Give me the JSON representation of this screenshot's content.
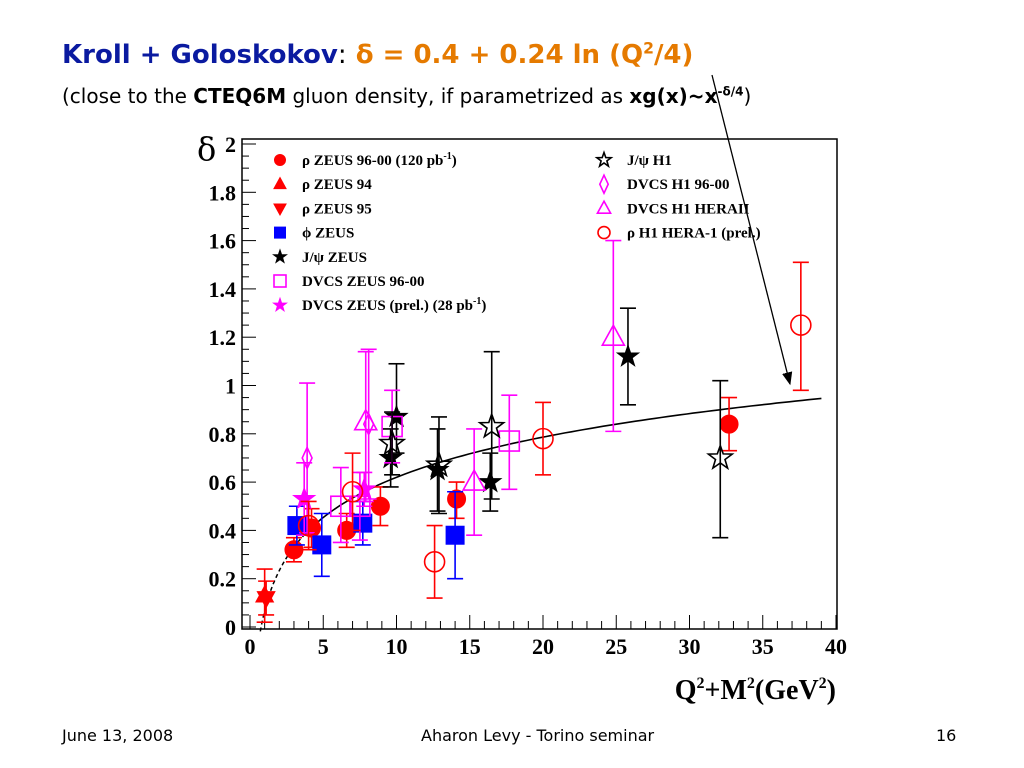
{
  "slide": {
    "title": {
      "authors": "Kroll + Goloskokov",
      "colon": ":",
      "delta": "δ",
      "equation_main": "= 0.4 + 0.24 ln (Q",
      "equation_sup": "2",
      "equation_end": "/4)"
    },
    "subtitle": {
      "part1": "(close to the",
      "cteq": "CTEQ6M",
      "part2": "gluon density, if parametrized as",
      "formula": "xg(x)~x",
      "formula_sup": "-δ/4",
      "close": ")"
    },
    "footer": {
      "date": "June 13, 2008",
      "center": "Aharon Levy - Torino seminar",
      "page": "16"
    }
  },
  "colors": {
    "title_blue": "#0a1aa0",
    "title_orange": "#e57a00",
    "red": "#ff0000",
    "blue": "#0000ff",
    "magenta": "#ff00ff",
    "black": "#000000"
  },
  "chart_data": {
    "type": "scatter",
    "xlabel": "Q2+M2(GeV2)",
    "xlabel_parts": [
      "Q",
      "2",
      "+M",
      "2",
      "(GeV",
      "2",
      ")"
    ],
    "ylabel": "δ",
    "xlim": [
      0,
      40
    ],
    "ylim": [
      0,
      2
    ],
    "xticks": [
      "0",
      "5",
      "10",
      "15",
      "20",
      "25",
      "30",
      "35",
      "40"
    ],
    "yticks": [
      "0",
      "0.2",
      "0.4",
      "0.6",
      "0.8",
      "1",
      "1.2",
      "1.4",
      "1.6",
      "1.8",
      "2"
    ],
    "legend_left": [
      {
        "symbol": "circle-filled",
        "color": "#ff0000",
        "label": "ρ ZEUS 96-00 (120 pb",
        "sup": "-1",
        "tail": ")"
      },
      {
        "symbol": "triangle-up-filled",
        "color": "#ff0000",
        "label": "ρ ZEUS 94",
        "sup": "",
        "tail": ""
      },
      {
        "symbol": "triangle-down-filled",
        "color": "#ff0000",
        "label": "ρ ZEUS 95",
        "sup": "",
        "tail": ""
      },
      {
        "symbol": "square-filled",
        "color": "#0000ff",
        "label": "ϕ ZEUS",
        "sup": "",
        "tail": ""
      },
      {
        "symbol": "star-filled",
        "color": "#000000",
        "label": "J/ψ ZEUS",
        "sup": "",
        "tail": ""
      },
      {
        "symbol": "square-open",
        "color": "#ff00ff",
        "label": "DVCS ZEUS 96-00",
        "sup": "",
        "tail": ""
      },
      {
        "symbol": "star-filled",
        "color": "#ff00ff",
        "label": "DVCS ZEUS (prel.) (28 pb",
        "sup": "-1",
        "tail": ")"
      }
    ],
    "legend_right": [
      {
        "symbol": "star-open",
        "color": "#000000",
        "label": "J/ψ H1",
        "sup": "",
        "tail": ""
      },
      {
        "symbol": "diamond-open",
        "color": "#ff00ff",
        "label": "DVCS H1 96-00",
        "sup": "",
        "tail": ""
      },
      {
        "symbol": "triangle-up-open",
        "color": "#ff00ff",
        "label": "DVCS H1 HERAII",
        "sup": "",
        "tail": ""
      },
      {
        "symbol": "circle-open",
        "color": "#ff0000",
        "label": "ρ H1 HERA-1 (prel.)",
        "sup": "",
        "tail": ""
      }
    ],
    "series": [
      {
        "name": "ρ ZEUS 96-00 (120 pb-1)",
        "symbol": "circle-filled",
        "color": "#ff0000",
        "points": [
          [
            3.0,
            0.32,
            0.27,
            0.37
          ],
          [
            4.2,
            0.41,
            0.33,
            0.49
          ],
          [
            6.6,
            0.4,
            0.33,
            0.47
          ],
          [
            8.9,
            0.5,
            0.42,
            0.58
          ],
          [
            14.1,
            0.53,
            0.45,
            0.6
          ],
          [
            32.7,
            0.84,
            0.73,
            0.95
          ]
        ]
      },
      {
        "name": "ρ ZEUS 94",
        "symbol": "triangle-up-filled",
        "color": "#ff0000",
        "points": [
          [
            1.0,
            0.13,
            0.02,
            0.24
          ]
        ]
      },
      {
        "name": "ρ ZEUS 95",
        "symbol": "triangle-down-filled",
        "color": "#ff0000",
        "points": [
          [
            1.1,
            0.12,
            0.05,
            0.19
          ]
        ]
      },
      {
        "name": "ϕ ZEUS",
        "symbol": "square-filled",
        "color": "#0000ff",
        "points": [
          [
            3.2,
            0.42,
            0.34,
            0.5
          ],
          [
            4.9,
            0.34,
            0.21,
            0.47
          ],
          [
            7.7,
            0.43,
            0.34,
            0.52
          ],
          [
            14.0,
            0.38,
            0.2,
            0.56
          ]
        ]
      },
      {
        "name": "J/ψ ZEUS",
        "symbol": "star-filled",
        "color": "#000000",
        "points": [
          [
            10.0,
            0.87,
            0.72,
            1.09
          ],
          [
            9.6,
            0.7,
            0.58,
            0.82
          ],
          [
            12.8,
            0.65,
            0.48,
            0.82
          ],
          [
            16.4,
            0.6,
            0.48,
            0.72
          ],
          [
            25.8,
            1.12,
            0.92,
            1.32
          ]
        ]
      },
      {
        "name": "DVCS ZEUS 96-00",
        "symbol": "square-open",
        "color": "#ff00ff",
        "points": [
          [
            6.2,
            0.5,
            0.35,
            0.66
          ],
          [
            7.5,
            0.5,
            0.36,
            0.64
          ],
          [
            9.7,
            0.83,
            0.68,
            0.98
          ],
          [
            17.7,
            0.77,
            0.57,
            0.96
          ]
        ]
      },
      {
        "name": "DVCS ZEUS (prel.) (28 pb-1)",
        "symbol": "star-filled",
        "color": "#ff00ff",
        "points": [
          [
            3.7,
            0.53,
            0.38,
            0.68
          ],
          [
            7.8,
            0.57,
            0.5,
            0.64
          ]
        ]
      },
      {
        "name": "J/ψ H1",
        "symbol": "star-open",
        "color": "#000000",
        "points": [
          [
            9.7,
            0.76,
            0.63,
            0.89
          ],
          [
            12.9,
            0.67,
            0.47,
            0.87
          ],
          [
            16.5,
            0.83,
            0.53,
            1.14
          ],
          [
            32.1,
            0.7,
            0.37,
            1.02
          ]
        ]
      },
      {
        "name": "DVCS H1 96-00",
        "symbol": "diamond-open",
        "color": "#ff00ff",
        "points": [
          [
            3.9,
            0.7,
            0.39,
            1.01
          ],
          [
            8.1,
            0.84,
            0.53,
            1.15
          ]
        ]
      },
      {
        "name": "DVCS H1 HERAII",
        "symbol": "triangle-up-open",
        "color": "#ff00ff",
        "points": [
          [
            7.9,
            0.85,
            0.52,
            1.14
          ],
          [
            15.3,
            0.6,
            0.38,
            0.82
          ],
          [
            24.8,
            1.2,
            0.81,
            1.6
          ]
        ]
      },
      {
        "name": "ρ H1 HERA-1 (prel.)",
        "symbol": "circle-open",
        "color": "#ff0000",
        "points": [
          [
            4.0,
            0.42,
            0.32,
            0.52
          ],
          [
            7.0,
            0.56,
            0.4,
            0.72
          ],
          [
            12.6,
            0.27,
            0.12,
            0.42
          ],
          [
            20.0,
            0.78,
            0.63,
            0.93
          ],
          [
            37.6,
            1.25,
            0.98,
            1.51
          ]
        ]
      }
    ],
    "fit_curve": {
      "formula": "δ = 0.4 + 0.24 ln(x/4)",
      "a": 0.4,
      "b": 0.24,
      "c": 4,
      "x_dashed_from": 0.7,
      "x_solid_from": 4,
      "x_to": 39
    }
  }
}
